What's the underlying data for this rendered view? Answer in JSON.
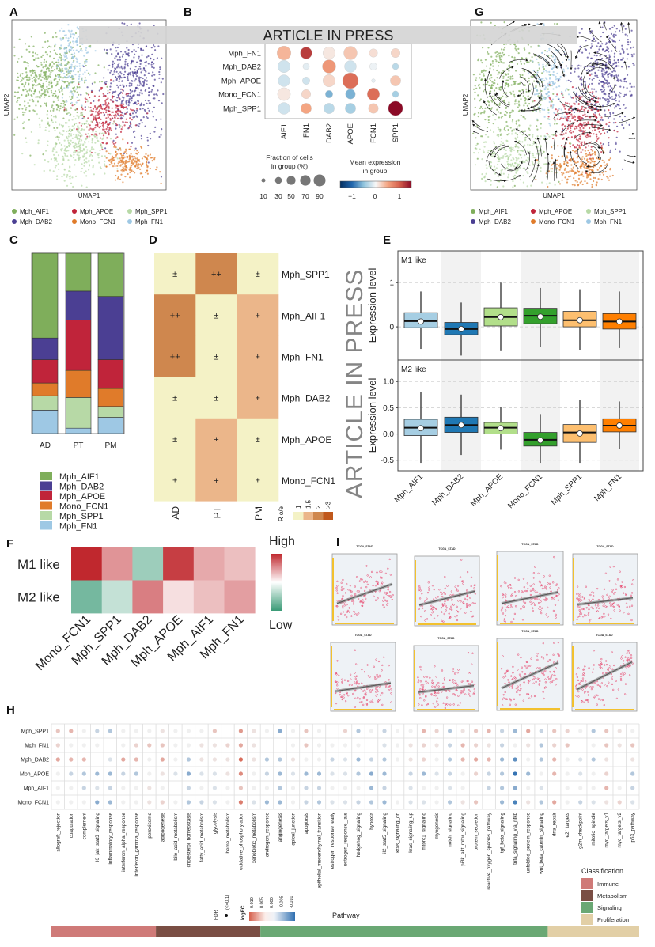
{
  "watermark": {
    "banner": "ARTICLE IN PRESS",
    "diagonal": "ARTICLE IN PRESS"
  },
  "panel_labels": {
    "A": "A",
    "B": "B",
    "C": "C",
    "D": "D",
    "E": "E",
    "F": "F",
    "G": "G",
    "H": "H",
    "I": "I"
  },
  "cluster_colors": {
    "Mph_AIF1": "#7fae5b",
    "Mph_DAB2": "#4b3f93",
    "Mph_APOE": "#c0243a",
    "Mono_FCN1": "#e07b2a",
    "Mph_SPP1": "#b7d9a6",
    "Mph_FN1": "#9ec8e4"
  },
  "chart_data": [
    {
      "panel": "A",
      "type": "scatter",
      "xlabel": "UMAP1",
      "ylabel": "UMAP2",
      "legend": [
        "Mph_AIF1",
        "Mph_APOE",
        "Mph_SPP1",
        "Mph_DAB2",
        "Mono_FCN1",
        "Mph_FN1"
      ],
      "legend_position": "bottom"
    },
    {
      "panel": "B",
      "type": "dotplot",
      "rows": [
        "Mph_FN1",
        "Mph_DAB2",
        "Mph_APOE",
        "Mono_FCN1",
        "Mph_SPP1"
      ],
      "columns": [
        "AIF1",
        "FN1",
        "DAB2",
        "APOE",
        "FCN1",
        "SPP1"
      ],
      "mean_expression": [
        [
          0.4,
          1.2,
          0.1,
          0.3,
          0.15,
          0.2
        ],
        [
          -0.2,
          -0.1,
          0.6,
          -0.2,
          -0.05,
          -0.3
        ],
        [
          -0.2,
          -0.2,
          0.2,
          0.9,
          -0.1,
          0.3
        ],
        [
          0.1,
          0.2,
          -0.6,
          -0.6,
          0.9,
          -0.4
        ],
        [
          -0.2,
          0.5,
          -0.3,
          -0.4,
          0.3,
          1.5
        ]
      ],
      "fraction_pct": [
        [
          70,
          50,
          55,
          65,
          25,
          30
        ],
        [
          55,
          15,
          65,
          50,
          20,
          15
        ],
        [
          50,
          20,
          55,
          90,
          5,
          40
        ],
        [
          60,
          30,
          20,
          35,
          55,
          15
        ],
        [
          50,
          40,
          40,
          40,
          35,
          75
        ]
      ],
      "size_legend_title": [
        "Fraction of cells",
        "in group (%)"
      ],
      "size_legend_values": [
        "10",
        "30",
        "50",
        "70",
        "90"
      ],
      "color_legend_title": [
        "Mean expression",
        "in group"
      ],
      "color_legend_ticks": [
        "−1",
        "0",
        "1"
      ],
      "color_range": [
        -1.5,
        1.5
      ]
    },
    {
      "panel": "G",
      "type": "scatter",
      "xlabel": "UMAP1",
      "ylabel": "UMAP2",
      "overlay": "velocity streamlines",
      "legend": [
        "Mph_AIF1",
        "Mph_APOE",
        "Mph_SPP1",
        "Mph_DAB2",
        "Mono_FCN1",
        "Mph_FN1"
      ],
      "legend_position": "bottom"
    },
    {
      "panel": "C",
      "type": "bar",
      "stacked": true,
      "categories": [
        "AD",
        "PT",
        "PM"
      ],
      "series": [
        {
          "name": "Mph_AIF1",
          "values": [
            0.47,
            0.21,
            0.24
          ]
        },
        {
          "name": "Mph_DAB2",
          "values": [
            0.12,
            0.16,
            0.35
          ]
        },
        {
          "name": "Mph_APOE",
          "values": [
            0.13,
            0.28,
            0.16
          ]
        },
        {
          "name": "Mono_FCN1",
          "values": [
            0.07,
            0.15,
            0.1
          ]
        },
        {
          "name": "Mph_SPP1",
          "values": [
            0.08,
            0.17,
            0.06
          ]
        },
        {
          "name": "Mph_FN1",
          "values": [
            0.13,
            0.03,
            0.09
          ]
        }
      ],
      "ylim": [
        0,
        1
      ],
      "legend_position": "bottom"
    },
    {
      "panel": "D",
      "type": "heatmap",
      "rows": [
        "Mph_SPP1",
        "Mph_AIF1",
        "Mph_FN1",
        "Mph_DAB2",
        "Mph_APOE",
        "Mono_FCN1"
      ],
      "columns": [
        "AD",
        "PT",
        "PM"
      ],
      "values": [
        [
          "±",
          "++",
          "±"
        ],
        [
          "++",
          "±",
          "+"
        ],
        [
          "++",
          "±",
          "+"
        ],
        [
          "±",
          "±",
          "+"
        ],
        [
          "±",
          "+",
          "±"
        ],
        [
          "±",
          "+",
          "±"
        ]
      ],
      "level_colors": {
        "±": "#f4f2c6",
        "+": "#ebb68a",
        "++": "#cf874e"
      },
      "legend_title": "R o/e",
      "legend_ticks": [
        "1",
        "1.5",
        "2",
        ">3"
      ],
      "legend_colors": [
        "#f4f2c6",
        "#ebb68a",
        "#cf874e",
        "#c0581c"
      ]
    },
    {
      "panel": "E",
      "type": "box",
      "ylabel": "Expression level",
      "categories": [
        "Mph_AIF1",
        "Mph_DAB2",
        "Mph_APOE",
        "Mono_FCN1",
        "Mph_SPP1",
        "Mph_FN1"
      ],
      "colors": [
        "#a6cee3",
        "#1f78b4",
        "#b2df8a",
        "#33a02c",
        "#fdbf6f",
        "#ff7f00"
      ],
      "panels": [
        {
          "name": "M1 like",
          "ylim": [
            -0.75,
            1.72
          ],
          "yticks": [
            0,
            1
          ],
          "ytick_labels": [
            "0",
            "1"
          ],
          "stats_min_q1_median_q3_max_mean": [
            [
              -0.5,
              -0.02,
              0.13,
              0.32,
              0.8,
              0.12
            ],
            [
              -0.65,
              -0.18,
              -0.05,
              0.1,
              0.55,
              -0.05
            ],
            [
              -0.55,
              0.02,
              0.22,
              0.43,
              1.0,
              0.22
            ],
            [
              -0.45,
              0.07,
              0.25,
              0.42,
              0.88,
              0.23
            ],
            [
              -0.52,
              0.0,
              0.15,
              0.35,
              0.85,
              0.15
            ],
            [
              -0.48,
              -0.05,
              0.12,
              0.3,
              0.8,
              0.12
            ]
          ]
        },
        {
          "name": "M2 like",
          "ylim": [
            -0.7,
            1.41
          ],
          "yticks": [
            -0.5,
            0,
            0.5,
            1.0
          ],
          "ytick_labels": [
            "-0.5",
            "0.0",
            "0.5",
            "1.0"
          ],
          "stats_min_q1_median_q3_max_mean": [
            [
              -0.55,
              -0.03,
              0.12,
              0.28,
              0.8,
              0.11
            ],
            [
              -0.4,
              0.03,
              0.17,
              0.32,
              0.75,
              0.17
            ],
            [
              -0.3,
              0.0,
              0.12,
              0.22,
              0.52,
              0.11
            ],
            [
              -0.55,
              -0.23,
              -0.11,
              0.03,
              0.38,
              -0.12
            ],
            [
              -0.55,
              -0.16,
              0.03,
              0.18,
              0.65,
              0.01
            ],
            [
              -0.28,
              0.04,
              0.16,
              0.29,
              0.62,
              0.16
            ]
          ]
        }
      ],
      "grid": "dashed horizontal"
    },
    {
      "panel": "F",
      "type": "heatmap",
      "rows": [
        "M1 like",
        "M2 like"
      ],
      "columns": [
        "Mono_FCN1",
        "Mph_SPP1",
        "Mph_DAB2",
        "Mph_APOE",
        "Mph_AIF1",
        "Mph_FN1"
      ],
      "values": [
        [
          1.0,
          0.5,
          -0.5,
          0.9,
          0.4,
          0.3
        ],
        [
          -0.7,
          -0.3,
          0.6,
          0.15,
          0.3,
          0.45
        ]
      ],
      "legend_high": "High",
      "legend_low": "Low",
      "color_high": "#c0282e",
      "color_low": "#3a9a76"
    },
    {
      "panel": "I",
      "type": "scatter",
      "titles": [
        "TCGA_STAD",
        "TCGA_STAD",
        "TCGA_STAD",
        "TCGA_STAD",
        "TCGA_STAD",
        "TCGA_STAD",
        "TCGA_STAD",
        "TCGA_STAD"
      ],
      "trend": "positive linear fit with confidence band",
      "point_color": "#e8436b",
      "rug_color": "#f2c12e"
    },
    {
      "panel": "H",
      "type": "dotplot",
      "xlabel": "Pathway",
      "rows": [
        "Mph_SPP1",
        "Mph_FN1",
        "Mph_DAB2",
        "Mph_APOE",
        "Mph_AIF1",
        "Mono_FCN1"
      ],
      "columns": [
        "allograft_rejection",
        "coagulation",
        "complement",
        "il6_jak_stat3_signaling",
        "inflammatory_response",
        "interferon_alpha_response",
        "interferon_gamma_response",
        "peroxisome",
        "adipogenesis",
        "bile_acid_metabolism",
        "cholesterol_homeostasis",
        "fatty_acid_metabolism",
        "glycolysis",
        "heme_metabolism",
        "oxidative_phosphorylation",
        "xenobiotic_metabolism",
        "androgen_response",
        "angiogenesis",
        "apical_junction",
        "apoptosis",
        "epithelial_mesenchymal_transition",
        "estrogen_response_early",
        "estrogen_response_late",
        "hedgehog_signaling",
        "hypoxia",
        "il2_stat5_signaling",
        "kras_signaling_dn",
        "kras_signaling_up",
        "mtorc1_signaling",
        "myogenesis",
        "notch_signaling",
        "pi3k_akt_mtor_signaling",
        "protein_secretion",
        "reactive_oxygen_species_pathway",
        "tgf_beta_signaling",
        "tnfa_signaling_via_nfkb",
        "unfolded_protein_response",
        "wnt_beta_catenin_signaling",
        "dna_repair",
        "e2f_targets",
        "g2m_checkpoint",
        "mitotic_spindle",
        "myc_targets_v1",
        "myc_targets_v2",
        "p53_pathway"
      ],
      "logFC": [
        [
          0.03,
          0.04,
          0,
          -0.02,
          -0.03,
          0,
          0,
          0,
          0.01,
          0,
          0,
          0,
          0.03,
          null,
          0.06,
          0.01,
          0,
          -0.05,
          0,
          0.03,
          0,
          null,
          0.02,
          -0.03,
          0,
          -0.02,
          0,
          0,
          0.04,
          0.02,
          -0.03,
          0.01,
          0.03,
          0.04,
          -0.02,
          -0.04,
          0.05,
          -0.02,
          0.03,
          0.02,
          0,
          -0.03,
          0.03,
          0.01,
          0
        ],
        [
          0.02,
          0,
          0,
          0,
          null,
          0,
          0.02,
          0.03,
          0.03,
          0,
          0,
          0.01,
          0.01,
          0.02,
          0.05,
          0.01,
          null,
          null,
          0,
          0.03,
          0,
          0,
          0,
          0,
          null,
          -0.01,
          0,
          0.01,
          0.02,
          0.01,
          -0.02,
          0.04,
          0.02,
          0.01,
          -0.02,
          0,
          0.01,
          -0.03,
          0.02,
          0.03,
          null,
          0,
          0.03,
          0.01,
          0.03
        ],
        [
          0.05,
          0.04,
          0.04,
          null,
          -0.01,
          0.05,
          0.04,
          0,
          0.05,
          0,
          -0.03,
          0.01,
          0.01,
          0.01,
          0.09,
          0.01,
          -0.03,
          -0.03,
          0.01,
          0,
          0,
          -0.02,
          -0.01,
          -0.04,
          -0.02,
          -0.03,
          0,
          0.01,
          0.02,
          0,
          -0.03,
          0.04,
          0.05,
          0.04,
          -0.04,
          -0.07,
          0,
          -0.03,
          0.04,
          0,
          -0.01,
          -0.03,
          0.01,
          null,
          0.01
        ],
        [
          0,
          -0.02,
          -0.03,
          -0.04,
          -0.04,
          -0.02,
          -0.03,
          0,
          0.01,
          -0.01,
          -0.05,
          -0.01,
          -0.01,
          0.01,
          0.07,
          0,
          -0.02,
          -0.04,
          -0.01,
          -0.04,
          -0.04,
          -0.01,
          -0.01,
          -0.03,
          -0.05,
          -0.04,
          null,
          -0.02,
          -0.04,
          -0.01,
          -0.02,
          0,
          0.02,
          -0.02,
          -0.03,
          -0.09,
          -0.04,
          0,
          0.04,
          0,
          -0.01,
          0,
          0.02,
          null,
          -0.03
        ],
        [
          0,
          0,
          -0.02,
          -0.01,
          -0.02,
          0,
          0,
          0.01,
          0,
          null,
          -0.02,
          0,
          -0.01,
          0,
          0.03,
          0,
          0,
          -0.03,
          0,
          -0.02,
          -0.02,
          0,
          0,
          0,
          -0.04,
          -0.02,
          null,
          -0.01,
          0,
          0,
          -0.01,
          0,
          null,
          -0.02,
          -0.03,
          -0.05,
          0,
          -0.01,
          null,
          0,
          0,
          0,
          0.04,
          0,
          -0.02
        ],
        [
          0,
          0,
          0,
          -0.05,
          -0.04,
          0,
          0,
          0.01,
          0.02,
          0,
          -0.03,
          -0.02,
          -0.01,
          0,
          0.08,
          -0.01,
          -0.04,
          -0.04,
          0,
          -0.02,
          -0.03,
          -0.01,
          -0.01,
          -0.02,
          -0.03,
          -0.04,
          0,
          -0.01,
          -0.01,
          0,
          -0.03,
          0.01,
          0.03,
          null,
          -0.04,
          -0.08,
          0.01,
          -0.03,
          0.05,
          0,
          -0.02,
          -0.01,
          0.01,
          0.02,
          -0.01
        ]
      ],
      "classification_title": "Classification",
      "classifications": [
        {
          "name": "Immune",
          "color": "#cf7a78",
          "columns": 8
        },
        {
          "name": "Metabolism",
          "color": "#7a4e44",
          "columns": 8
        },
        {
          "name": "Signaling",
          "color": "#6aa874",
          "columns": 22
        },
        {
          "name": "Proliferation",
          "color": "#e2cfa6",
          "columns": 7
        }
      ],
      "fdr_label": "FDR",
      "fdr_value": "(<=0.1)",
      "logfc_label": "logFC",
      "logfc_ticks": [
        "0.010",
        "0.005",
        "0.000",
        "-0.005",
        "-0.010"
      ]
    }
  ]
}
